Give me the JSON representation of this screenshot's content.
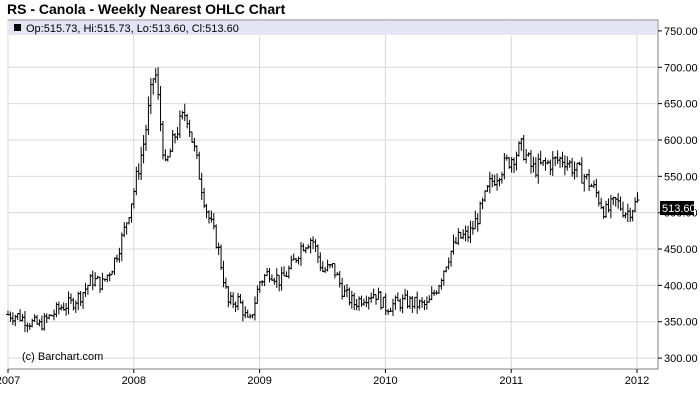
{
  "title": "RS - Canola - Weekly Nearest OHLC Chart",
  "ohlc_readout": "Op:515.73, Hi:515.73, Lo:513.60, Cl:513.60",
  "watermark": "(c) Barchart.com",
  "last_price_badge": "513.60",
  "colors": {
    "price": "#000000",
    "grid": "#d8d8d8",
    "legend_bg": "#e4e4f4",
    "badge_bg": "#000000"
  },
  "chart_data": {
    "type": "ohlc",
    "title": "RS - Canola - Weekly Nearest OHLC Chart",
    "x_tick_labels": [
      "2007",
      "2008",
      "2009",
      "2010",
      "2011",
      "2012"
    ],
    "y_tick_labels": [
      "300.00",
      "350.00",
      "400.00",
      "450.00",
      "500.00",
      "550.00",
      "600.00",
      "650.00",
      "700.00",
      "750.00"
    ],
    "xlim": [
      "2007-01",
      "2012-03"
    ],
    "ylim": [
      285,
      765
    ],
    "grid": true,
    "last": {
      "open": 515.73,
      "high": 515.73,
      "low": 513.6,
      "close": 513.6
    },
    "anchor_points": [
      [
        "2007-01",
        360
      ],
      [
        "2007-02",
        358
      ],
      [
        "2007-03",
        350
      ],
      [
        "2007-04",
        345
      ],
      [
        "2007-05",
        357
      ],
      [
        "2007-06",
        370
      ],
      [
        "2007-07",
        375
      ],
      [
        "2007-08",
        388
      ],
      [
        "2007-09",
        408
      ],
      [
        "2007-10",
        402
      ],
      [
        "2007-11",
        428
      ],
      [
        "2007-12",
        470
      ],
      [
        "2008-01",
        530
      ],
      [
        "2008-02",
        600
      ],
      [
        "2008-03",
        700
      ],
      [
        "2008-04",
        560
      ],
      [
        "2008-05",
        610
      ],
      [
        "2008-06",
        640
      ],
      [
        "2008-07",
        570
      ],
      [
        "2008-08",
        500
      ],
      [
        "2008-09",
        455
      ],
      [
        "2008-10",
        375
      ],
      [
        "2008-11",
        380
      ],
      [
        "2008-12",
        345
      ],
      [
        "2009-01",
        405
      ],
      [
        "2009-02",
        420
      ],
      [
        "2009-03",
        405
      ],
      [
        "2009-04",
        425
      ],
      [
        "2009-05",
        455
      ],
      [
        "2009-06",
        465
      ],
      [
        "2009-07",
        420
      ],
      [
        "2009-08",
        425
      ],
      [
        "2009-09",
        390
      ],
      [
        "2009-10",
        375
      ],
      [
        "2009-11",
        385
      ],
      [
        "2009-12",
        390
      ],
      [
        "2010-01",
        370
      ],
      [
        "2010-02",
        375
      ],
      [
        "2010-03",
        378
      ],
      [
        "2010-04",
        374
      ],
      [
        "2010-05",
        372
      ],
      [
        "2010-06",
        400
      ],
      [
        "2010-07",
        440
      ],
      [
        "2010-08",
        465
      ],
      [
        "2010-09",
        470
      ],
      [
        "2010-10",
        500
      ],
      [
        "2010-11",
        540
      ],
      [
        "2010-12",
        560
      ],
      [
        "2011-01",
        575
      ],
      [
        "2011-02",
        590
      ],
      [
        "2011-03",
        560
      ],
      [
        "2011-04",
        565
      ],
      [
        "2011-05",
        570
      ],
      [
        "2011-06",
        575
      ],
      [
        "2011-07",
        560
      ],
      [
        "2011-08",
        550
      ],
      [
        "2011-09",
        530
      ],
      [
        "2011-10",
        500
      ],
      [
        "2011-11",
        515
      ],
      [
        "2011-12",
        500
      ],
      [
        "2012-01",
        514
      ]
    ]
  }
}
